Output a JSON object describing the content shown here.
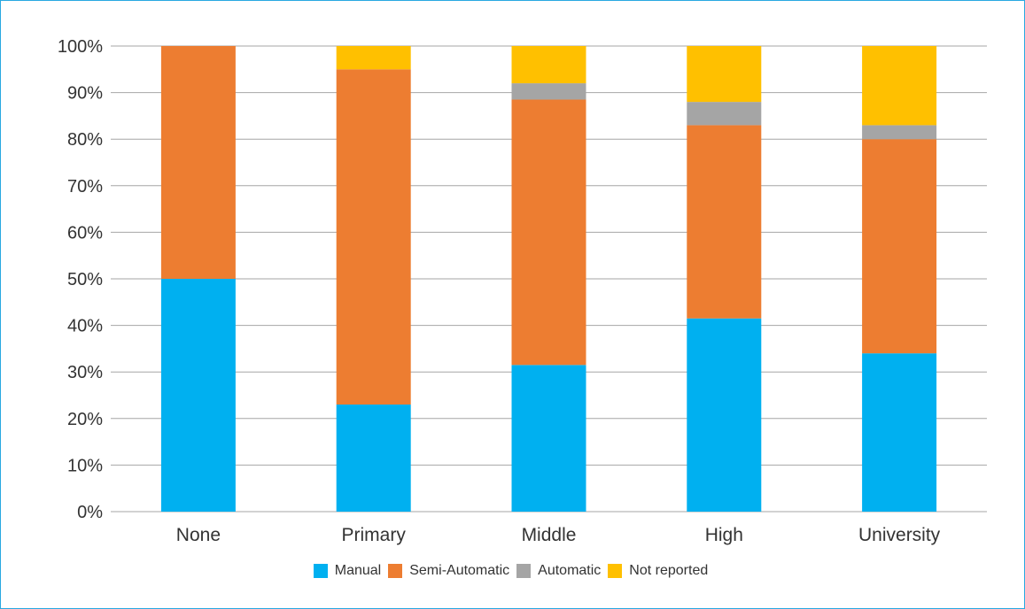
{
  "chart_data": {
    "type": "bar",
    "stacked": true,
    "normalized": true,
    "categories": [
      "None",
      "Primary",
      "Middle",
      "High",
      "University"
    ],
    "series": [
      {
        "name": "Manual",
        "color": "#00b0f0",
        "values": [
          50,
          23,
          31.5,
          41.5,
          34
        ]
      },
      {
        "name": "Semi-Automatic",
        "color": "#ed7d31",
        "values": [
          50,
          72,
          57,
          41.5,
          46
        ]
      },
      {
        "name": "Automatic",
        "color": "#a5a5a5",
        "values": [
          0,
          0,
          3.5,
          5,
          3
        ]
      },
      {
        "name": "Not reported",
        "color": "#ffc000",
        "values": [
          0,
          5,
          8,
          12,
          17
        ]
      }
    ],
    "y_ticks": [
      "0%",
      "10%",
      "20%",
      "30%",
      "40%",
      "50%",
      "60%",
      "70%",
      "80%",
      "90%",
      "100%"
    ],
    "ylim": [
      0,
      100
    ],
    "grid": true,
    "legend_position": "bottom"
  }
}
